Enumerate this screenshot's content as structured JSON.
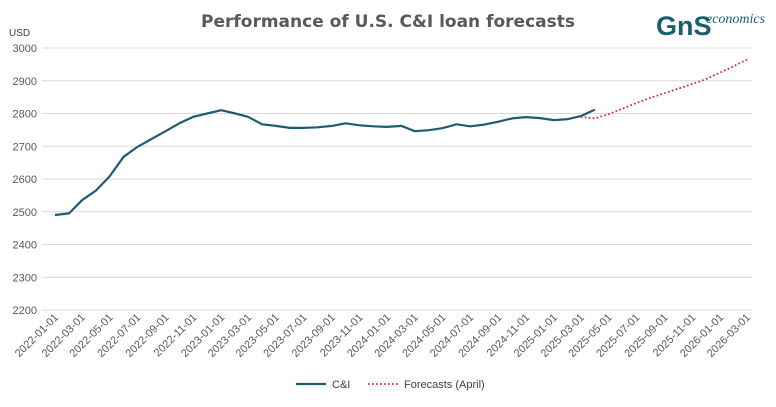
{
  "logo": {
    "letters": "GnS",
    "word": "economics",
    "color": "#1a5f6e"
  },
  "chart_data": {
    "type": "line",
    "title": "Performance of U.S. C&I loan forecasts",
    "ylabel": "USD",
    "ylim": [
      2200,
      3000
    ],
    "yticks": [
      2200,
      2300,
      2400,
      2500,
      2600,
      2700,
      2800,
      2900,
      3000
    ],
    "xticks": [
      "2022-01-01",
      "2022-03-01",
      "2022-05-01",
      "2022-07-01",
      "2022-09-01",
      "2022-11-01",
      "2023-01-01",
      "2023-03-01",
      "2023-05-01",
      "2023-07-01",
      "2023-09-01",
      "2023-11-01",
      "2024-01-01",
      "2024-03-01",
      "2024-05-01",
      "2024-07-01",
      "2024-09-01",
      "2024-11-01",
      "2025-01-01",
      "2025-03-01",
      "2025-05-01",
      "2025-07-01",
      "2025-09-01",
      "2025-11-01",
      "2026-01-01",
      "2026-03-01"
    ],
    "grid": true,
    "legend_position": "bottom",
    "series": [
      {
        "name": "C&I",
        "color": "#1f5c72",
        "style": "solid",
        "x": [
          "2022-01-01",
          "2022-02-01",
          "2022-03-01",
          "2022-04-01",
          "2022-05-01",
          "2022-06-01",
          "2022-07-01",
          "2022-08-01",
          "2022-09-01",
          "2022-10-01",
          "2022-11-01",
          "2022-12-01",
          "2023-01-01",
          "2023-02-01",
          "2023-03-01",
          "2023-04-01",
          "2023-05-01",
          "2023-06-01",
          "2023-07-01",
          "2023-08-01",
          "2023-09-01",
          "2023-10-01",
          "2023-11-01",
          "2023-12-01",
          "2024-01-01",
          "2024-02-01",
          "2024-03-01",
          "2024-04-01",
          "2024-05-01",
          "2024-06-01",
          "2024-07-01",
          "2024-08-01",
          "2024-09-01",
          "2024-10-01",
          "2024-11-01",
          "2024-12-01",
          "2025-01-01",
          "2025-02-01",
          "2025-03-01",
          "2025-04-01"
        ],
        "y": [
          2490,
          2495,
          2535,
          2565,
          2608,
          2668,
          2698,
          2722,
          2746,
          2770,
          2790,
          2800,
          2810,
          2800,
          2790,
          2767,
          2762,
          2756,
          2756,
          2758,
          2762,
          2770,
          2764,
          2761,
          2759,
          2762,
          2746,
          2749,
          2755,
          2767,
          2761,
          2766,
          2775,
          2785,
          2789,
          2786,
          2780,
          2783,
          2792,
          2812
        ]
      },
      {
        "name": "Forecasts (April)",
        "color": "#d42020",
        "style": "dotted",
        "x": [
          "2025-03-01",
          "2025-04-01",
          "2025-05-01",
          "2025-06-01",
          "2025-07-01",
          "2025-08-01",
          "2025-09-01",
          "2025-10-01",
          "2025-11-01",
          "2025-12-01",
          "2026-01-01",
          "2026-02-01",
          "2026-03-01"
        ],
        "y": [
          2790,
          2785,
          2798,
          2815,
          2832,
          2848,
          2862,
          2876,
          2890,
          2905,
          2925,
          2945,
          2965
        ]
      }
    ]
  }
}
